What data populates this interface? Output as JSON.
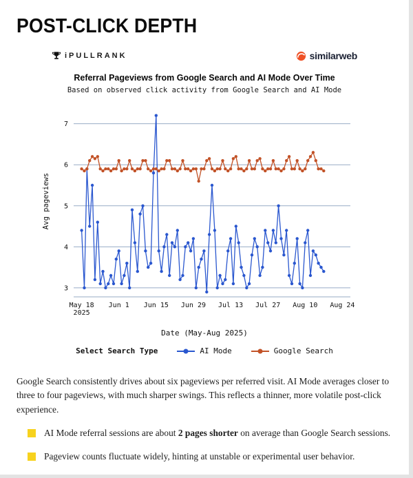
{
  "page_title": "POST-CLICK DEPTH",
  "header": {
    "ipullrank_label": "iPULLRANK",
    "similarweb_label": "similarweb"
  },
  "chart_data": {
    "type": "line",
    "title": "Referral Pageviews from Google Search and AI Mode Over Time",
    "subtitle": "Based on observed click activity from Google Search and AI Mode",
    "xlabel": "Date (May-Aug 2025)",
    "ylabel": "Avg pageviews",
    "legend_title": "Select Search Type",
    "legend_position": "bottom",
    "grid": true,
    "grid_color": "#97abc6",
    "x_start_date": "May 18, 2025",
    "x_interval": "daily",
    "xlim": [
      -3,
      101
    ],
    "ylim": [
      2.78,
      7.38
    ],
    "yticks": [
      3,
      4,
      5,
      6,
      7
    ],
    "x_ticks": [
      {
        "pos": 0,
        "label": "May 18\n2025"
      },
      {
        "pos": 14,
        "label": "Jun 1"
      },
      {
        "pos": 28,
        "label": "Jun 15"
      },
      {
        "pos": 42,
        "label": "Jun 29"
      },
      {
        "pos": 56,
        "label": "Jul 13"
      },
      {
        "pos": 70,
        "label": "Jul 27"
      },
      {
        "pos": 84,
        "label": "Aug 10"
      },
      {
        "pos": 98,
        "label": "Aug 24"
      }
    ],
    "series": [
      {
        "name": "AI Mode",
        "color": "#2a57cf",
        "values": [
          4.4,
          3.0,
          5.9,
          4.5,
          5.5,
          3.2,
          4.6,
          3.1,
          3.4,
          3.0,
          3.1,
          3.3,
          3.1,
          3.7,
          3.9,
          3.1,
          3.3,
          3.6,
          3.0,
          4.9,
          4.1,
          3.4,
          4.8,
          5.0,
          3.9,
          3.5,
          3.6,
          5.8,
          7.2,
          3.9,
          3.4,
          4.0,
          4.3,
          3.3,
          4.1,
          4.0,
          4.4,
          3.2,
          3.3,
          4.0,
          4.1,
          3.9,
          4.2,
          3.0,
          3.5,
          3.7,
          3.9,
          2.9,
          4.3,
          5.5,
          4.4,
          3.0,
          3.3,
          3.1,
          3.2,
          3.9,
          4.2,
          3.1,
          4.5,
          4.1,
          3.5,
          3.3,
          3.0,
          3.1,
          3.8,
          4.2,
          4.0,
          3.3,
          3.5,
          4.4,
          4.1,
          3.9,
          4.4,
          4.1,
          5.0,
          4.2,
          3.8,
          4.4,
          3.3,
          3.1,
          3.6,
          4.2,
          3.1,
          3.0,
          4.1,
          4.4,
          3.3,
          3.9,
          3.8,
          3.6,
          3.5,
          3.4
        ]
      },
      {
        "name": "Google Search",
        "color": "#c25227",
        "values": [
          5.9,
          5.85,
          5.9,
          6.1,
          6.2,
          6.15,
          6.2,
          5.9,
          5.85,
          5.9,
          5.9,
          5.85,
          5.9,
          5.9,
          6.1,
          5.85,
          5.9,
          5.9,
          6.1,
          5.9,
          5.85,
          5.9,
          5.9,
          6.1,
          6.1,
          5.9,
          5.85,
          5.9,
          5.9,
          5.85,
          5.9,
          5.9,
          6.1,
          6.1,
          5.9,
          5.9,
          5.85,
          5.9,
          6.1,
          5.9,
          5.9,
          5.85,
          5.9,
          5.9,
          5.6,
          5.9,
          5.9,
          6.1,
          6.15,
          5.9,
          5.85,
          5.9,
          5.9,
          6.1,
          5.9,
          5.85,
          5.9,
          6.15,
          6.2,
          5.9,
          5.9,
          5.85,
          5.9,
          6.1,
          5.9,
          5.9,
          6.1,
          6.15,
          5.9,
          5.85,
          5.9,
          5.9,
          6.1,
          5.9,
          5.9,
          5.85,
          5.9,
          6.1,
          6.2,
          5.9,
          5.9,
          6.1,
          5.9,
          5.85,
          5.9,
          6.1,
          6.2,
          6.3,
          6.1,
          5.9,
          5.9,
          5.85
        ]
      }
    ]
  },
  "content": {
    "bullet_color": "#f7d21e",
    "paragraph": "Google Search consistently drives about six pageviews per referred visit. AI Mode averages closer to three to four pageviews, with much sharper swings. This reflects a thinner, more volatile post-click experience.",
    "bullets": [
      {
        "prefix": "AI Mode referral sessions are about ",
        "bold": "2 pages shorter",
        "suffix": " on average than Google Search sessions."
      },
      {
        "prefix": "Pageview counts fluctuate widely, hinting at unstable or experimental user behavior.",
        "bold": "",
        "suffix": ""
      }
    ]
  }
}
